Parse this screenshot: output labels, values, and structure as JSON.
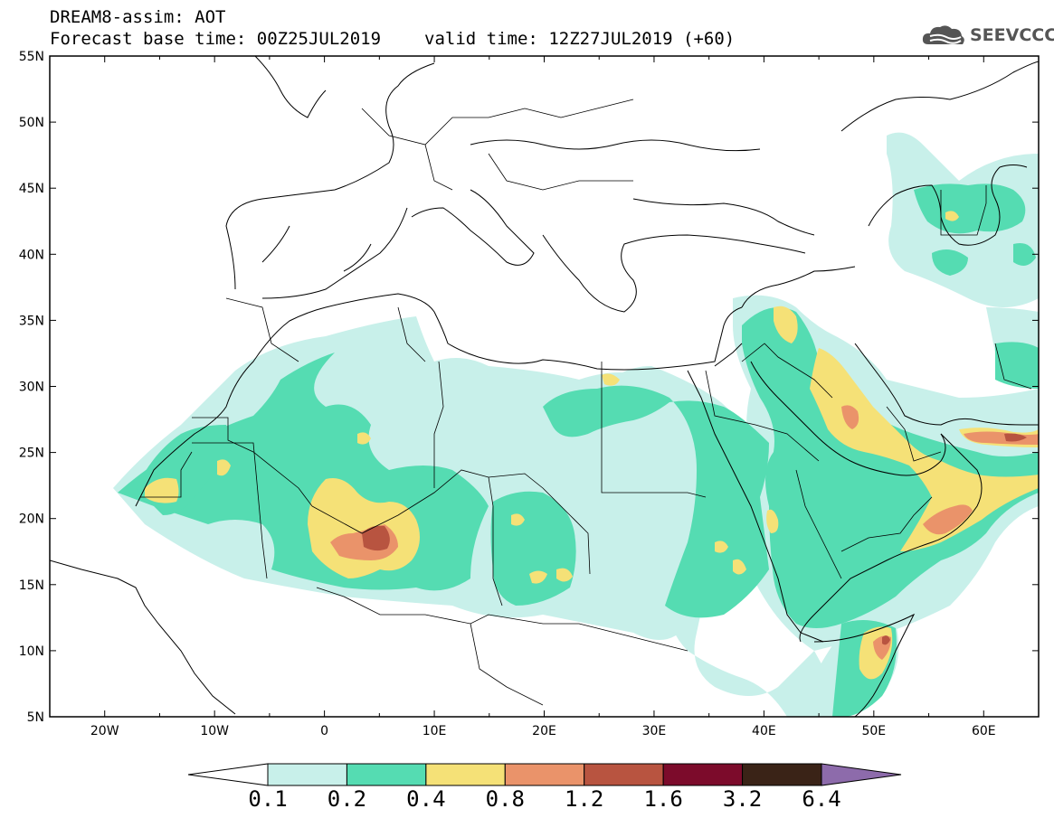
{
  "title": {
    "line1": "DREAM8-assim: AOT",
    "base": "Forecast base time: 00Z25JUL2019",
    "valid": "valid time: 12Z27JUL2019 (+60)"
  },
  "logo": {
    "text": "SEEVCCC",
    "icon": "cloud-logo-icon"
  },
  "map": {
    "lon_range": [
      -25,
      65
    ],
    "lat_range": [
      5,
      55
    ],
    "lat_ticks": [
      "55N",
      "50N",
      "45N",
      "40N",
      "35N",
      "30N",
      "25N",
      "20N",
      "15N",
      "10N",
      "5N"
    ],
    "lon_ticks": [
      "20W",
      "10W",
      "0",
      "10E",
      "20E",
      "30E",
      "40E",
      "50E",
      "60E"
    ]
  },
  "legend": {
    "labels": [
      "0.1",
      "0.2",
      "0.4",
      "0.8",
      "1.2",
      "1.6",
      "3.2",
      "6.4"
    ],
    "colors": [
      "#ffffff",
      "#c8f0ea",
      "#55dcb2",
      "#f5e177",
      "#ea936a",
      "#b85440",
      "#7c0b2b",
      "#3a2317",
      "#8d6bab"
    ]
  }
}
